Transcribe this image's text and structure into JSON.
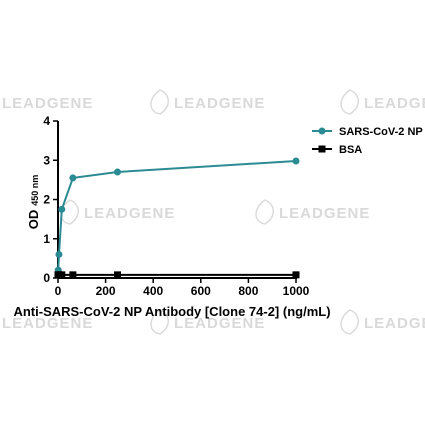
{
  "watermark": {
    "text": "LEADGENE"
  },
  "colors": {
    "series_np": "#2b8b93",
    "series_bsa": "#000000",
    "watermark": "#d9d9d9"
  },
  "chart_data": {
    "type": "line",
    "xlabel": "Anti-SARS-CoV-2 NP Antibody [Clone 74-2] (ng/mL)",
    "ylabel": {
      "main": "OD",
      "sub": "450 nm"
    },
    "xlim": [
      0,
      1000
    ],
    "ylim": [
      0,
      4
    ],
    "xticks": [
      0,
      200,
      400,
      600,
      800,
      1000
    ],
    "yticks": [
      0,
      1,
      2,
      3,
      4
    ],
    "grid": false,
    "legend_position": "top-right",
    "series": [
      {
        "name": "SARS-CoV-2 NP",
        "marker": "circle",
        "color": "#2b8b93",
        "x": [
          0,
          1,
          4,
          16,
          62.5,
          250,
          1000
        ],
        "y": [
          0.1,
          0.2,
          0.6,
          1.75,
          2.55,
          2.7,
          2.98
        ]
      },
      {
        "name": "BSA",
        "marker": "square",
        "color": "#000000",
        "x": [
          0,
          1,
          4,
          16,
          62.5,
          250,
          1000
        ],
        "y": [
          0.08,
          0.08,
          0.08,
          0.08,
          0.08,
          0.08,
          0.08
        ]
      }
    ]
  }
}
